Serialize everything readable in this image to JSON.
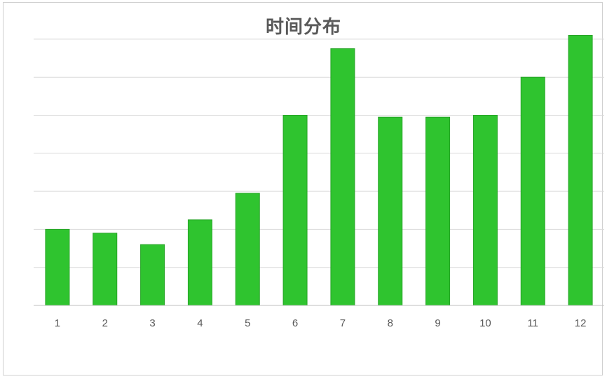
{
  "chart_data": {
    "type": "bar",
    "title": "时间分布",
    "xlabel": "",
    "ylabel": "",
    "categories": [
      "1",
      "2",
      "3",
      "4",
      "5",
      "6",
      "7",
      "8",
      "9",
      "10",
      "11",
      "12"
    ],
    "values": [
      2.0,
      1.9,
      1.6,
      2.25,
      2.95,
      5.0,
      6.75,
      4.95,
      4.95,
      5.0,
      6.0,
      7.1
    ],
    "ylim": [
      0,
      7
    ],
    "y_tick_step": 1,
    "y_tick_labels_visible": false,
    "grid": true,
    "legend": "none",
    "colors": {
      "bar_fill": "#2fc42f",
      "bar_stroke": "#26a326",
      "grid": "#d9d9d9",
      "axis": "#bfbfbf",
      "text": "#595959"
    }
  }
}
